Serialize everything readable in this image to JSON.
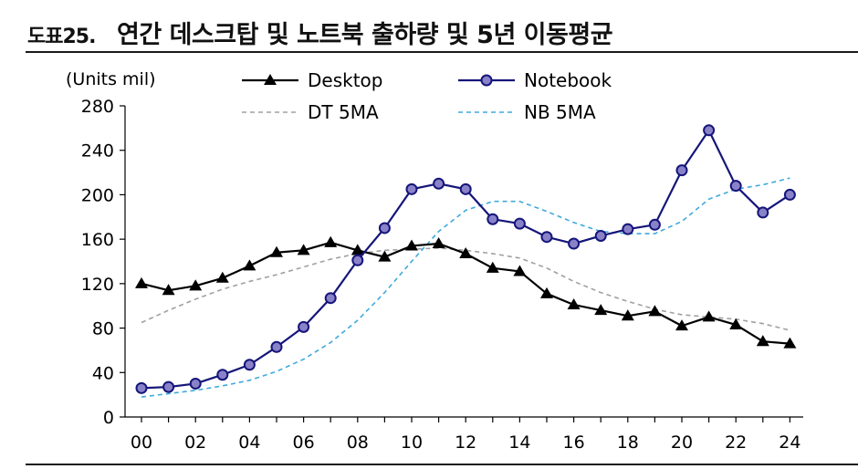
{
  "header": {
    "figure_label": "도표25.",
    "title": "연간 데스크탑 및 노트북 출하량 및 5년 이동평균"
  },
  "chart_data": {
    "type": "line",
    "title": "연간 데스크탑 및 노트북 출하량 및 5년 이동평균",
    "ylabel": "(Units mil)",
    "xlabel": "",
    "ylim": [
      0,
      280
    ],
    "yticks": [
      0,
      40,
      80,
      120,
      160,
      200,
      240,
      280
    ],
    "ytick_labels": [
      "0",
      "40",
      "80",
      "120",
      "160",
      "200",
      "240",
      "280"
    ],
    "x": [
      0,
      1,
      2,
      3,
      4,
      5,
      6,
      7,
      8,
      9,
      10,
      11,
      12,
      13,
      14,
      15,
      16,
      17,
      18,
      19,
      20,
      21,
      22,
      23,
      24
    ],
    "xticks": [
      0,
      2,
      4,
      6,
      8,
      10,
      12,
      14,
      16,
      18,
      20,
      22,
      24
    ],
    "xtick_labels": [
      "00",
      "02",
      "04",
      "06",
      "08",
      "10",
      "12",
      "14",
      "16",
      "18",
      "20",
      "22",
      "24"
    ],
    "grid": false,
    "legend_position": "top",
    "series": [
      {
        "name": "Desktop",
        "style": "solid-triangle",
        "color": "#000000",
        "values": [
          120,
          114,
          118,
          125,
          136,
          148,
          150,
          157,
          150,
          144,
          154,
          156,
          147,
          134,
          131,
          111,
          101,
          96,
          91,
          95,
          82,
          90,
          83,
          68,
          66
        ]
      },
      {
        "name": "Notebook",
        "style": "solid-circle",
        "color": "#15157a",
        "marker_fill": "#8a82c8",
        "values": [
          26,
          27,
          30,
          38,
          47,
          63,
          81,
          107,
          141,
          170,
          205,
          210,
          205,
          178,
          174,
          162,
          156,
          163,
          169,
          173,
          222,
          258,
          208,
          184,
          200
        ]
      },
      {
        "name": "DT 5MA",
        "style": "dashed",
        "color": "#a0a0a0",
        "values": [
          85,
          96,
          106,
          115,
          122,
          128,
          135,
          142,
          147,
          150,
          151,
          152,
          150,
          147,
          143,
          134,
          122,
          112,
          104,
          97,
          92,
          90,
          88,
          84,
          78
        ]
      },
      {
        "name": "NB 5MA",
        "style": "dashed",
        "color": "#3ea9dc",
        "values": [
          18,
          21,
          24,
          28,
          33,
          41,
          52,
          67,
          87,
          112,
          140,
          167,
          186,
          194,
          194,
          185,
          175,
          167,
          165,
          165,
          176,
          196,
          205,
          209,
          215
        ]
      }
    ]
  }
}
